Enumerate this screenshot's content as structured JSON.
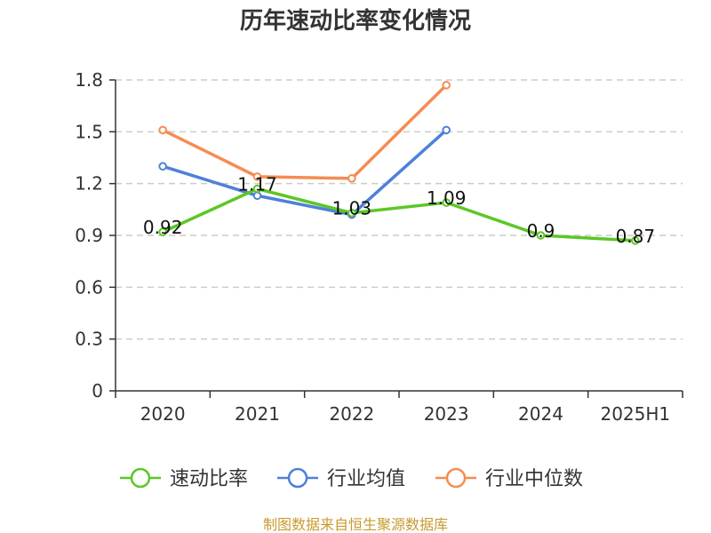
{
  "title": "历年速动比率变化情况",
  "source": "制图数据来自恒生聚源数据库",
  "colors": {
    "speed_ratio": "#5cc726",
    "industry_mean": "#4f80d9",
    "industry_median": "#f58c53",
    "grid": "#cccccc",
    "axis": "#333333",
    "source": "#c99a2e"
  },
  "chart_data": {
    "type": "line",
    "title": "历年速动比率变化情况",
    "categories": [
      "2020",
      "2021",
      "2022",
      "2023",
      "2024",
      "2025H1"
    ],
    "y_ticks": [
      "0",
      "0.3",
      "0.6",
      "0.9",
      "1.2",
      "1.5",
      "1.8"
    ],
    "ylim": [
      0,
      1.8
    ],
    "grid": true,
    "grid_style": "dashed-horizontal",
    "legend_position": "bottom",
    "series": [
      {
        "name": "速动比率",
        "color": "#5cc726",
        "values": [
          0.92,
          1.17,
          1.03,
          1.09,
          0.9,
          0.87
        ],
        "labels": [
          "0.92",
          "1.17",
          "1.03",
          "1.09",
          "0.9",
          "0.87"
        ],
        "show_labels": true
      },
      {
        "name": "行业均值",
        "color": "#4f80d9",
        "values": [
          1.3,
          1.13,
          1.02,
          1.51,
          null,
          null
        ],
        "show_labels": false
      },
      {
        "name": "行业中位数",
        "color": "#f58c53",
        "values": [
          1.51,
          1.24,
          1.23,
          1.77,
          null,
          null
        ],
        "show_labels": false
      }
    ]
  }
}
